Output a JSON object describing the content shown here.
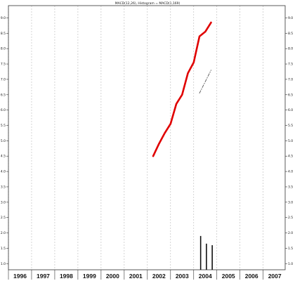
{
  "chart_data": {
    "type": "line",
    "title": "MACD(12,26), Histogram = MACD(1,169)",
    "xlabel": "",
    "ylabel": "",
    "xlim": [
      1996.0,
      2007.95
    ],
    "ylim": [
      0.8,
      9.4
    ],
    "grid": true,
    "legend": "none",
    "x_tick_labels": [
      "1996",
      "1997",
      "1998",
      "1999",
      "2000",
      "2001",
      "2002",
      "2003",
      "2004",
      "2005",
      "2006",
      "2007"
    ],
    "x_ticks": [
      1996,
      1997,
      1998,
      1999,
      2000,
      2001,
      2002,
      2003,
      2004,
      2005,
      2006,
      2007
    ],
    "y_ticks": [
      1.0,
      1.5,
      2.0,
      2.5,
      3.0,
      3.5,
      4.0,
      4.5,
      5.0,
      5.5,
      6.0,
      6.5,
      7.0,
      7.5,
      8.0,
      8.5,
      9.0
    ],
    "y_tick_labels": [
      "1.0",
      "1.5",
      "2.0",
      "2.5",
      "3.0",
      "3.5",
      "4.0",
      "4.5",
      "5.0",
      "5.5",
      "6.0",
      "6.5",
      "7.0",
      "7.5",
      "8.0",
      "8.5",
      "9.0"
    ],
    "series": [
      {
        "style": "line",
        "color": "#e00000",
        "x": [
          2002.25,
          2002.5,
          2002.75,
          2003.0,
          2003.25,
          2003.5,
          2003.75,
          2004.0,
          2004.25,
          2004.5,
          2004.75
        ],
        "values": [
          4.5,
          4.9,
          5.25,
          5.55,
          6.2,
          6.5,
          7.2,
          7.55,
          8.4,
          8.55,
          8.85
        ]
      },
      {
        "style": "dashed",
        "color": "#555555",
        "x": [
          2004.25,
          2004.75
        ],
        "values": [
          6.55,
          7.3
        ]
      },
      {
        "style": "bar",
        "color": "#111111",
        "x": [
          2004.3,
          2004.55,
          2004.8
        ],
        "values": [
          1.9,
          1.65,
          1.6
        ]
      }
    ]
  }
}
